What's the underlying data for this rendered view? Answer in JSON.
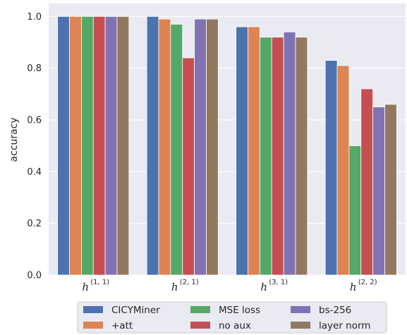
{
  "chart_data": {
    "type": "bar",
    "ylabel": "accuracy",
    "ylim": [
      0,
      1.05
    ],
    "yticks": [
      "0.0",
      "0.2",
      "0.4",
      "0.6",
      "0.8",
      "1.0"
    ],
    "categories": [
      {
        "base": "h",
        "sup": "(1, 1)"
      },
      {
        "base": "h",
        "sup": "(2, 1)"
      },
      {
        "base": "h",
        "sup": "(3, 1)"
      },
      {
        "base": "h",
        "sup": "(2, 2)"
      }
    ],
    "series": [
      {
        "name": "CICYMiner",
        "color": "#4c72b0",
        "values": [
          1.0,
          1.0,
          0.96,
          0.83
        ]
      },
      {
        "name": "+att",
        "color": "#dd8452",
        "values": [
          1.0,
          0.99,
          0.96,
          0.81
        ]
      },
      {
        "name": "MSE loss",
        "color": "#55a868",
        "values": [
          1.0,
          0.97,
          0.92,
          0.5
        ]
      },
      {
        "name": "no aux",
        "color": "#c44e52",
        "values": [
          1.0,
          0.84,
          0.92,
          0.72
        ]
      },
      {
        "name": "bs-256",
        "color": "#8172b3",
        "values": [
          1.0,
          0.99,
          0.94,
          0.65
        ]
      },
      {
        "name": "layer norm",
        "color": "#937860",
        "values": [
          1.0,
          0.99,
          0.92,
          0.66
        ]
      }
    ],
    "grid": true,
    "legend_position": "bottom"
  }
}
